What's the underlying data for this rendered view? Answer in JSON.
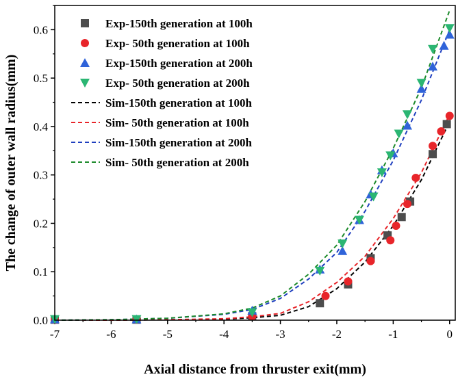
{
  "chart_data": {
    "type": "scatter",
    "title": "",
    "xlabel": "Axial distance from thruster exit(mm)",
    "ylabel": "The change of outer wall radius(mm)",
    "xlim": [
      -7,
      0.1
    ],
    "ylim": [
      0,
      0.65
    ],
    "xticks": [
      -7,
      -6,
      -5,
      -4,
      -3,
      -2,
      -1,
      0
    ],
    "yticks": [
      0.0,
      0.1,
      0.2,
      0.3,
      0.4,
      0.5,
      0.6
    ],
    "xtick_labels": [
      "-7",
      "-6",
      "-5",
      "-4",
      "-3",
      "-2",
      "-1",
      "0"
    ],
    "ytick_labels": [
      "0.0",
      "0.1",
      "0.2",
      "0.3",
      "0.4",
      "0.5",
      "0.6"
    ],
    "grid": false,
    "legend_position": "top-left",
    "series": [
      {
        "name": "Exp-150th generation at 100h",
        "kind": "marker",
        "marker": "square",
        "color": "#4d4d4d",
        "x": [
          -7.0,
          -5.55,
          -3.5,
          -2.3,
          -1.8,
          -1.4,
          -1.1,
          -0.85,
          -0.7,
          -0.3,
          -0.05
        ],
        "y": [
          0.001,
          0.001,
          0.008,
          0.035,
          0.074,
          0.128,
          0.175,
          0.213,
          0.245,
          0.343,
          0.405
        ]
      },
      {
        "name": "Exp- 50th generation at 100h",
        "kind": "marker",
        "marker": "circle",
        "color": "#e8252a",
        "x": [
          -7.0,
          -5.55,
          -3.5,
          -2.2,
          -1.8,
          -1.4,
          -1.05,
          -0.95,
          -0.75,
          -0.6,
          -0.3,
          -0.15,
          0.0
        ],
        "y": [
          0.001,
          0.001,
          0.008,
          0.05,
          0.08,
          0.122,
          0.165,
          0.195,
          0.24,
          0.294,
          0.36,
          0.39,
          0.422
        ]
      },
      {
        "name": "Exp-150th generation at 200h",
        "kind": "marker",
        "marker": "triangle-up",
        "color": "#2f63d9",
        "x": [
          -7.0,
          -5.55,
          -3.5,
          -2.3,
          -1.9,
          -1.6,
          -1.4,
          -1.2,
          -1.0,
          -0.75,
          -0.5,
          -0.3,
          -0.1,
          0.0
        ],
        "y": [
          0.002,
          0.002,
          0.02,
          0.105,
          0.143,
          0.207,
          0.26,
          0.31,
          0.345,
          0.402,
          0.478,
          0.524,
          0.567,
          0.59
        ]
      },
      {
        "name": "Exp- 50th generation at 200h",
        "kind": "marker",
        "marker": "triangle-down",
        "color": "#2bb673",
        "x": [
          -7.0,
          -5.55,
          -3.5,
          -2.3,
          -1.9,
          -1.6,
          -1.35,
          -1.2,
          -1.05,
          -0.9,
          -0.75,
          -0.5,
          -0.3,
          0.0
        ],
        "y": [
          0.002,
          0.002,
          0.016,
          0.102,
          0.158,
          0.207,
          0.255,
          0.305,
          0.34,
          0.385,
          0.425,
          0.49,
          0.56,
          0.603
        ]
      },
      {
        "name": "Sim-150th generation at 100h",
        "kind": "line",
        "color": "#000000",
        "x": [
          -7.0,
          -6.0,
          -5.0,
          -4.0,
          -3.5,
          -3.0,
          -2.5,
          -2.0,
          -1.5,
          -1.0,
          -0.5,
          0.0
        ],
        "y": [
          0.0,
          0.0,
          0.001,
          0.002,
          0.005,
          0.01,
          0.028,
          0.065,
          0.12,
          0.195,
          0.29,
          0.41
        ]
      },
      {
        "name": "Sim- 50th generation at 100h",
        "kind": "line",
        "color": "#e8252a",
        "x": [
          -7.0,
          -6.0,
          -5.0,
          -4.0,
          -3.5,
          -3.0,
          -2.5,
          -2.0,
          -1.5,
          -1.0,
          -0.5,
          0.0
        ],
        "y": [
          0.0,
          0.0,
          0.001,
          0.003,
          0.007,
          0.014,
          0.038,
          0.078,
          0.132,
          0.21,
          0.305,
          0.425
        ]
      },
      {
        "name": "Sim-150th generation at 200h",
        "kind": "line",
        "color": "#1f3fbf",
        "x": [
          -7.0,
          -6.0,
          -5.0,
          -4.0,
          -3.5,
          -3.0,
          -2.5,
          -2.0,
          -1.5,
          -1.0,
          -0.5,
          0.0
        ],
        "y": [
          0.0,
          0.001,
          0.004,
          0.012,
          0.022,
          0.045,
          0.085,
          0.14,
          0.225,
          0.33,
          0.455,
          0.6
        ]
      },
      {
        "name": "Sim- 50th generation at 200h",
        "kind": "line",
        "color": "#1b8a2a",
        "x": [
          -7.0,
          -6.0,
          -5.0,
          -4.0,
          -3.5,
          -3.0,
          -2.5,
          -2.0,
          -1.5,
          -1.0,
          -0.5,
          0.0
        ],
        "y": [
          0.0,
          0.001,
          0.004,
          0.013,
          0.025,
          0.05,
          0.095,
          0.155,
          0.245,
          0.355,
          0.48,
          0.64
        ]
      }
    ]
  }
}
